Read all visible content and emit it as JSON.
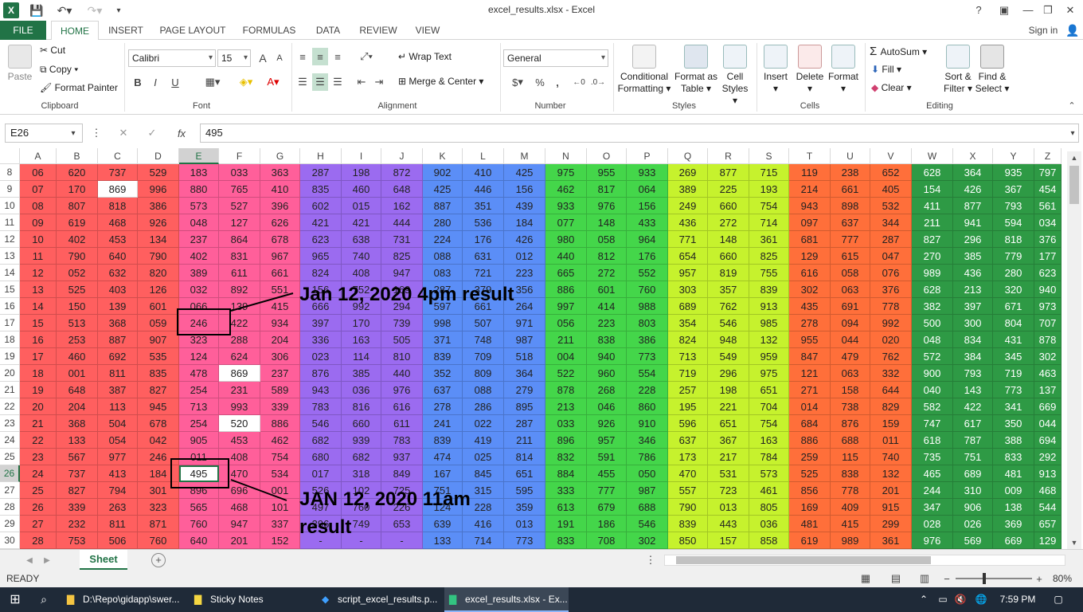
{
  "app": {
    "window_title": "excel_results.xlsx - Excel",
    "sign_in": "Sign in",
    "help": "?"
  },
  "tabs": [
    "FILE",
    "HOME",
    "INSERT",
    "PAGE LAYOUT",
    "FORMULAS",
    "DATA",
    "REVIEW",
    "VIEW"
  ],
  "active_tab": "HOME",
  "ribbon": {
    "clipboard": {
      "paste": "Paste",
      "cut": "Cut",
      "copy": "Copy",
      "format_painter": "Format Painter",
      "label": "Clipboard"
    },
    "font": {
      "name": "Calibri",
      "size": "15",
      "bold": "B",
      "italic": "I",
      "underline": "U",
      "label": "Font"
    },
    "alignment": {
      "wrap_text": "Wrap Text",
      "merge_center": "Merge & Center",
      "label": "Alignment"
    },
    "number": {
      "format": "General",
      "currency": "$",
      "percent": "%",
      "comma": ",",
      "label": "Number"
    },
    "styles": {
      "conditional": "Conditional",
      "conditional2": "Formatting",
      "format_table": "Format as",
      "format_table2": "Table",
      "cell_styles": "Cell",
      "cell_styles2": "Styles",
      "label": "Styles"
    },
    "cells": {
      "insert": "Insert",
      "delete": "Delete",
      "format": "Format",
      "label": "Cells"
    },
    "editing": {
      "autosum": "AutoSum",
      "fill": "Fill",
      "clear": "Clear",
      "sort": "Sort &",
      "sort2": "Filter",
      "find": "Find &",
      "find2": "Select",
      "label": "Editing"
    }
  },
  "formula_bar": {
    "name_box": "E26",
    "cancel": "✕",
    "enter": "✓",
    "fx": "fx",
    "value": "495"
  },
  "sheet": {
    "columns": [
      "A",
      "B",
      "C",
      "D",
      "E",
      "F",
      "G",
      "H",
      "I",
      "J",
      "K",
      "L",
      "M",
      "N",
      "O",
      "P",
      "Q",
      "R",
      "S",
      "T",
      "U",
      "V",
      "W",
      "X",
      "Y",
      "Z"
    ],
    "selected_col": "E",
    "selected_row": "26",
    "rows": [
      {
        "n": "8",
        "v": [
          "06",
          "620",
          "737",
          "529",
          "183",
          "033",
          "363",
          "287",
          "198",
          "872",
          "902",
          "410",
          "425",
          "975",
          "955",
          "933",
          "269",
          "877",
          "715",
          "119",
          "238",
          "652",
          "628",
          "364",
          "935",
          "797"
        ]
      },
      {
        "n": "9",
        "v": [
          "07",
          "170",
          "869",
          "996",
          "880",
          "765",
          "410",
          "835",
          "460",
          "648",
          "425",
          "446",
          "156",
          "462",
          "817",
          "064",
          "389",
          "225",
          "193",
          "214",
          "661",
          "405",
          "154",
          "426",
          "367",
          "454"
        ]
      },
      {
        "n": "10",
        "v": [
          "08",
          "807",
          "818",
          "386",
          "573",
          "527",
          "396",
          "602",
          "015",
          "162",
          "887",
          "351",
          "439",
          "933",
          "976",
          "156",
          "249",
          "660",
          "754",
          "943",
          "898",
          "532",
          "411",
          "877",
          "793",
          "561"
        ]
      },
      {
        "n": "11",
        "v": [
          "09",
          "619",
          "468",
          "926",
          "048",
          "127",
          "626",
          "421",
          "421",
          "444",
          "280",
          "536",
          "184",
          "077",
          "148",
          "433",
          "436",
          "272",
          "714",
          "097",
          "637",
          "344",
          "211",
          "941",
          "594",
          "034"
        ]
      },
      {
        "n": "12",
        "v": [
          "10",
          "402",
          "453",
          "134",
          "237",
          "864",
          "678",
          "623",
          "638",
          "731",
          "224",
          "176",
          "426",
          "980",
          "058",
          "964",
          "771",
          "148",
          "361",
          "681",
          "777",
          "287",
          "827",
          "296",
          "818",
          "376"
        ]
      },
      {
        "n": "13",
        "v": [
          "11",
          "790",
          "640",
          "790",
          "402",
          "831",
          "967",
          "965",
          "740",
          "825",
          "088",
          "631",
          "012",
          "440",
          "812",
          "176",
          "654",
          "660",
          "825",
          "129",
          "615",
          "047",
          "270",
          "385",
          "779",
          "177"
        ]
      },
      {
        "n": "14",
        "v": [
          "12",
          "052",
          "632",
          "820",
          "389",
          "611",
          "661",
          "824",
          "408",
          "947",
          "083",
          "721",
          "223",
          "665",
          "272",
          "552",
          "957",
          "819",
          "755",
          "616",
          "058",
          "076",
          "989",
          "436",
          "280",
          "623"
        ]
      },
      {
        "n": "15",
        "v": [
          "13",
          "525",
          "403",
          "126",
          "032",
          "892",
          "551",
          "156",
          "752",
          "169",
          "287",
          "379",
          "356",
          "886",
          "601",
          "760",
          "303",
          "357",
          "839",
          "302",
          "063",
          "376",
          "628",
          "213",
          "320",
          "940"
        ]
      },
      {
        "n": "16",
        "v": [
          "14",
          "150",
          "139",
          "601",
          "066",
          "139",
          "415",
          "666",
          "992",
          "294",
          "597",
          "661",
          "264",
          "997",
          "414",
          "988",
          "689",
          "762",
          "913",
          "435",
          "691",
          "778",
          "382",
          "397",
          "671",
          "973"
        ]
      },
      {
        "n": "17",
        "v": [
          "15",
          "513",
          "368",
          "059",
          "246",
          "422",
          "934",
          "397",
          "170",
          "739",
          "998",
          "507",
          "971",
          "056",
          "223",
          "803",
          "354",
          "546",
          "985",
          "278",
          "094",
          "992",
          "500",
          "300",
          "804",
          "707"
        ]
      },
      {
        "n": "18",
        "v": [
          "16",
          "253",
          "887",
          "907",
          "323",
          "288",
          "204",
          "336",
          "163",
          "505",
          "371",
          "748",
          "987",
          "211",
          "838",
          "386",
          "824",
          "948",
          "132",
          "955",
          "044",
          "020",
          "048",
          "834",
          "431",
          "878"
        ]
      },
      {
        "n": "19",
        "v": [
          "17",
          "460",
          "692",
          "535",
          "124",
          "624",
          "306",
          "023",
          "114",
          "810",
          "839",
          "709",
          "518",
          "004",
          "940",
          "773",
          "713",
          "549",
          "959",
          "847",
          "479",
          "762",
          "572",
          "384",
          "345",
          "302"
        ]
      },
      {
        "n": "20",
        "v": [
          "18",
          "001",
          "811",
          "835",
          "478",
          "869",
          "237",
          "876",
          "385",
          "440",
          "352",
          "809",
          "364",
          "522",
          "960",
          "554",
          "719",
          "296",
          "975",
          "121",
          "063",
          "332",
          "900",
          "793",
          "719",
          "463"
        ]
      },
      {
        "n": "21",
        "v": [
          "19",
          "648",
          "387",
          "827",
          "254",
          "231",
          "589",
          "943",
          "036",
          "976",
          "637",
          "088",
          "279",
          "878",
          "268",
          "228",
          "257",
          "198",
          "651",
          "271",
          "158",
          "644",
          "040",
          "143",
          "773",
          "137"
        ]
      },
      {
        "n": "22",
        "v": [
          "20",
          "204",
          "113",
          "945",
          "713",
          "993",
          "339",
          "783",
          "816",
          "616",
          "278",
          "286",
          "895",
          "213",
          "046",
          "860",
          "195",
          "221",
          "704",
          "014",
          "738",
          "829",
          "582",
          "422",
          "341",
          "669"
        ]
      },
      {
        "n": "23",
        "v": [
          "21",
          "368",
          "504",
          "678",
          "254",
          "520",
          "886",
          "546",
          "660",
          "611",
          "241",
          "022",
          "287",
          "033",
          "926",
          "910",
          "596",
          "651",
          "754",
          "684",
          "876",
          "159",
          "747",
          "617",
          "350",
          "044"
        ]
      },
      {
        "n": "24",
        "v": [
          "22",
          "133",
          "054",
          "042",
          "905",
          "453",
          "462",
          "682",
          "939",
          "783",
          "839",
          "419",
          "211",
          "896",
          "957",
          "346",
          "637",
          "367",
          "163",
          "886",
          "688",
          "011",
          "618",
          "787",
          "388",
          "694"
        ]
      },
      {
        "n": "25",
        "v": [
          "23",
          "567",
          "977",
          "246",
          "011",
          "408",
          "754",
          "680",
          "682",
          "937",
          "474",
          "025",
          "814",
          "832",
          "591",
          "786",
          "173",
          "217",
          "784",
          "259",
          "115",
          "740",
          "735",
          "751",
          "833",
          "292"
        ]
      },
      {
        "n": "26",
        "v": [
          "24",
          "737",
          "413",
          "184",
          "495",
          "470",
          "534",
          "017",
          "318",
          "849",
          "167",
          "845",
          "651",
          "884",
          "455",
          "050",
          "470",
          "531",
          "573",
          "525",
          "838",
          "132",
          "465",
          "689",
          "481",
          "913"
        ]
      },
      {
        "n": "27",
        "v": [
          "25",
          "827",
          "794",
          "301",
          "896",
          "696",
          "001",
          "526",
          "102",
          "725",
          "751",
          "315",
          "595",
          "333",
          "777",
          "987",
          "557",
          "723",
          "461",
          "856",
          "778",
          "201",
          "244",
          "310",
          "009",
          "468"
        ]
      },
      {
        "n": "28",
        "v": [
          "26",
          "339",
          "263",
          "323",
          "565",
          "468",
          "101",
          "497",
          "760",
          "226",
          "124",
          "228",
          "359",
          "613",
          "679",
          "688",
          "790",
          "013",
          "805",
          "169",
          "409",
          "915",
          "347",
          "906",
          "138",
          "544"
        ]
      },
      {
        "n": "29",
        "v": [
          "27",
          "232",
          "811",
          "871",
          "760",
          "947",
          "337",
          "396",
          "749",
          "653",
          "639",
          "416",
          "013",
          "191",
          "186",
          "546",
          "839",
          "443",
          "036",
          "481",
          "415",
          "299",
          "028",
          "026",
          "369",
          "657"
        ]
      },
      {
        "n": "30",
        "v": [
          "28",
          "753",
          "506",
          "760",
          "640",
          "201",
          "152",
          "-",
          "-",
          "-",
          "133",
          "714",
          "773",
          "833",
          "708",
          "302",
          "850",
          "157",
          "858",
          "619",
          "989",
          "361",
          "976",
          "569",
          "669",
          "129"
        ]
      }
    ],
    "white_cells": [
      [
        "9",
        "C"
      ],
      [
        "20",
        "F"
      ],
      [
        "23",
        "F"
      ],
      [
        "26",
        "E"
      ]
    ],
    "annotation_top": "Jan 12, 2020 4pm result",
    "annotation_bottom_1": "JAN 12, 2020 11am",
    "annotation_bottom_2": "result",
    "sheet_tab": "Sheet",
    "add_sheet": "+"
  },
  "colors": {
    "excel_green": "#217346",
    "band_red": "#ff5f5f",
    "band_pink": "#ff5f9a",
    "band_purple": "#9b6bf0",
    "band_blue": "#5b8ef7",
    "band_green": "#44d64a",
    "band_lime": "#c6f22d",
    "band_orange": "#ff6f3a",
    "band_darkgreen": "#2e9a45"
  },
  "status": {
    "ready": "READY",
    "zoom": "80%"
  },
  "taskbar": {
    "items": [
      "D:\\Repo\\gidapp\\swer...",
      "Sticky Notes",
      "script_excel_results.p...",
      "excel_results.xlsx - Ex..."
    ],
    "time": "7:59 PM"
  }
}
